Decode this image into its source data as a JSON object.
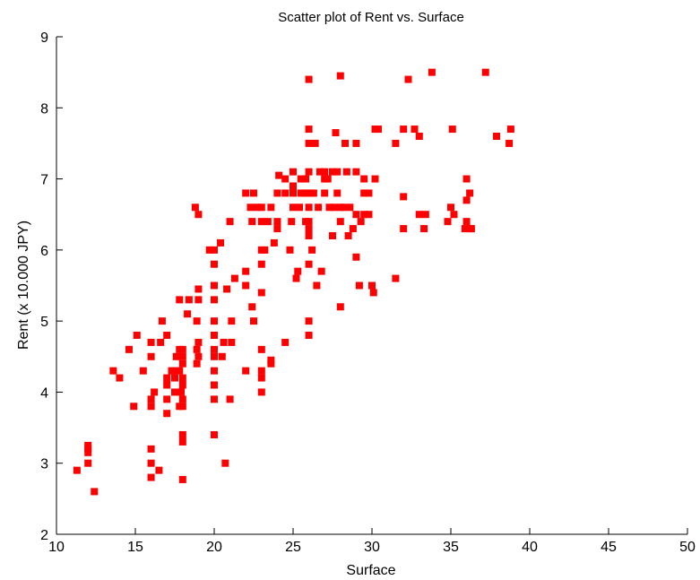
{
  "chart_data": {
    "type": "scatter",
    "title": "Scatter plot of Rent vs. Surface",
    "xlabel": "Surface",
    "ylabel": "Rent (x 10.000 JPY)",
    "xlim": [
      10,
      50
    ],
    "ylim": [
      2,
      9
    ],
    "xticks": [
      "10",
      "15",
      "20",
      "25",
      "30",
      "35",
      "40",
      "45",
      "50"
    ],
    "yticks": [
      "2",
      "3",
      "4",
      "5",
      "6",
      "7",
      "8",
      "9"
    ],
    "grid": false,
    "marker_color": "#ff0000",
    "points": [
      [
        11.3,
        2.9
      ],
      [
        12.0,
        3.0
      ],
      [
        12.0,
        3.15
      ],
      [
        12.0,
        3.2
      ],
      [
        12.0,
        3.25
      ],
      [
        12.4,
        2.6
      ],
      [
        13.6,
        4.3
      ],
      [
        14.0,
        4.2
      ],
      [
        14.6,
        4.6
      ],
      [
        14.9,
        3.8
      ],
      [
        15.1,
        4.8
      ],
      [
        15.5,
        4.3
      ],
      [
        16.0,
        2.8
      ],
      [
        16.0,
        3.0
      ],
      [
        16.0,
        3.2
      ],
      [
        16.0,
        3.8
      ],
      [
        16.0,
        3.9
      ],
      [
        16.0,
        4.5
      ],
      [
        16.0,
        4.7
      ],
      [
        16.2,
        4.0
      ],
      [
        16.5,
        2.9
      ],
      [
        16.6,
        4.7
      ],
      [
        16.7,
        5.0
      ],
      [
        17.0,
        3.7
      ],
      [
        17.0,
        3.9
      ],
      [
        17.0,
        4.1
      ],
      [
        17.0,
        4.2
      ],
      [
        17.0,
        4.8
      ],
      [
        17.3,
        4.3
      ],
      [
        17.5,
        4.0
      ],
      [
        17.5,
        4.2
      ],
      [
        17.5,
        4.3
      ],
      [
        17.6,
        4.5
      ],
      [
        17.8,
        3.8
      ],
      [
        17.8,
        4.3
      ],
      [
        17.8,
        4.6
      ],
      [
        17.8,
        5.3
      ],
      [
        17.9,
        4.0
      ],
      [
        18.0,
        2.77
      ],
      [
        18.0,
        3.3
      ],
      [
        18.0,
        3.4
      ],
      [
        18.0,
        3.8
      ],
      [
        18.0,
        3.9
      ],
      [
        18.0,
        4.1
      ],
      [
        18.0,
        4.2
      ],
      [
        18.0,
        4.4
      ],
      [
        18.0,
        4.5
      ],
      [
        18.0,
        4.6
      ],
      [
        18.3,
        5.1
      ],
      [
        18.4,
        5.3
      ],
      [
        18.8,
        6.6
      ],
      [
        18.9,
        4.4
      ],
      [
        18.9,
        4.6
      ],
      [
        18.9,
        5.0
      ],
      [
        19.0,
        4.5
      ],
      [
        19.0,
        4.7
      ],
      [
        19.0,
        5.3
      ],
      [
        19.0,
        5.45
      ],
      [
        19.0,
        6.5
      ],
      [
        19.7,
        6.0
      ],
      [
        20.0,
        3.4
      ],
      [
        20.0,
        3.9
      ],
      [
        20.0,
        4.1
      ],
      [
        20.0,
        4.3
      ],
      [
        20.0,
        4.5
      ],
      [
        20.0,
        4.6
      ],
      [
        20.0,
        4.8
      ],
      [
        20.0,
        5.0
      ],
      [
        20.0,
        5.3
      ],
      [
        20.0,
        5.5
      ],
      [
        20.0,
        5.8
      ],
      [
        20.0,
        6.0
      ],
      [
        20.4,
        6.1
      ],
      [
        20.5,
        4.5
      ],
      [
        20.6,
        4.7
      ],
      [
        20.7,
        3.0
      ],
      [
        20.8,
        5.45
      ],
      [
        21.0,
        3.9
      ],
      [
        21.0,
        6.4
      ],
      [
        21.1,
        4.7
      ],
      [
        21.1,
        5.0
      ],
      [
        21.3,
        5.6
      ],
      [
        22.0,
        4.3
      ],
      [
        22.0,
        5.5
      ],
      [
        22.0,
        5.7
      ],
      [
        22.0,
        6.8
      ],
      [
        22.3,
        6.6
      ],
      [
        22.4,
        5.2
      ],
      [
        22.4,
        6.4
      ],
      [
        22.5,
        6.8
      ],
      [
        22.5,
        5.0
      ],
      [
        22.7,
        6.6
      ],
      [
        23.0,
        4.0
      ],
      [
        23.0,
        4.2
      ],
      [
        23.0,
        4.3
      ],
      [
        23.0,
        4.6
      ],
      [
        23.0,
        5.4
      ],
      [
        23.0,
        5.8
      ],
      [
        23.0,
        6.0
      ],
      [
        23.0,
        6.4
      ],
      [
        23.0,
        6.6
      ],
      [
        23.2,
        6.0
      ],
      [
        23.4,
        6.4
      ],
      [
        23.6,
        6.6
      ],
      [
        23.6,
        4.4
      ],
      [
        23.6,
        4.45
      ],
      [
        23.8,
        6.1
      ],
      [
        24.0,
        6.3
      ],
      [
        24.0,
        6.4
      ],
      [
        24.0,
        6.8
      ],
      [
        24.1,
        7.05
      ],
      [
        24.5,
        6.8
      ],
      [
        24.5,
        7.0
      ],
      [
        24.5,
        4.7
      ],
      [
        24.8,
        6.0
      ],
      [
        24.9,
        6.4
      ],
      [
        25.0,
        7.1
      ],
      [
        25.0,
        6.6
      ],
      [
        25.0,
        6.8
      ],
      [
        25.0,
        6.9
      ],
      [
        25.2,
        5.6
      ],
      [
        25.3,
        5.7
      ],
      [
        25.4,
        6.6
      ],
      [
        25.5,
        6.8
      ],
      [
        25.5,
        7.0
      ],
      [
        25.8,
        6.4
      ],
      [
        25.8,
        6.8
      ],
      [
        25.8,
        7.0
      ],
      [
        26.0,
        4.8
      ],
      [
        26.0,
        5.0
      ],
      [
        26.0,
        6.3
      ],
      [
        26.0,
        6.4
      ],
      [
        26.0,
        6.6
      ],
      [
        26.0,
        6.8
      ],
      [
        26.0,
        7.1
      ],
      [
        26.0,
        7.5
      ],
      [
        26.0,
        7.7
      ],
      [
        26.0,
        8.4
      ],
      [
        26.0,
        6.2
      ],
      [
        26.0,
        5.8
      ],
      [
        26.2,
        6.0
      ],
      [
        26.3,
        6.8
      ],
      [
        26.4,
        7.5
      ],
      [
        26.5,
        5.5
      ],
      [
        26.6,
        6.6
      ],
      [
        26.7,
        7.1
      ],
      [
        26.8,
        5.7
      ],
      [
        27.0,
        6.8
      ],
      [
        27.0,
        7.0
      ],
      [
        27.0,
        7.1
      ],
      [
        27.2,
        7.0
      ],
      [
        27.3,
        6.6
      ],
      [
        27.5,
        6.2
      ],
      [
        27.5,
        7.1
      ],
      [
        27.6,
        6.6
      ],
      [
        27.7,
        7.65
      ],
      [
        27.8,
        6.8
      ],
      [
        27.8,
        7.1
      ],
      [
        28.0,
        5.2
      ],
      [
        28.0,
        6.6
      ],
      [
        28.0,
        6.4
      ],
      [
        28.0,
        8.45
      ],
      [
        28.2,
        6.6
      ],
      [
        28.3,
        7.5
      ],
      [
        28.4,
        7.1
      ],
      [
        28.5,
        6.2
      ],
      [
        28.6,
        6.6
      ],
      [
        28.8,
        6.3
      ],
      [
        29.0,
        5.9
      ],
      [
        29.0,
        6.5
      ],
      [
        29.0,
        7.1
      ],
      [
        29.0,
        7.5
      ],
      [
        29.2,
        5.5
      ],
      [
        29.3,
        6.4
      ],
      [
        29.5,
        6.5
      ],
      [
        29.5,
        6.8
      ],
      [
        29.5,
        7.0
      ],
      [
        29.8,
        6.5
      ],
      [
        29.8,
        6.8
      ],
      [
        30.0,
        5.5
      ],
      [
        30.1,
        5.4
      ],
      [
        30.2,
        7.0
      ],
      [
        30.2,
        7.7
      ],
      [
        30.4,
        7.7
      ],
      [
        31.5,
        5.6
      ],
      [
        31.5,
        7.5
      ],
      [
        32.0,
        6.3
      ],
      [
        32.0,
        6.75
      ],
      [
        32.0,
        7.7
      ],
      [
        32.3,
        8.4
      ],
      [
        32.7,
        7.7
      ],
      [
        33.0,
        6.5
      ],
      [
        33.0,
        7.6
      ],
      [
        33.3,
        6.3
      ],
      [
        33.4,
        6.5
      ],
      [
        33.8,
        8.5
      ],
      [
        34.8,
        6.4
      ],
      [
        35.0,
        6.6
      ],
      [
        35.1,
        7.7
      ],
      [
        35.2,
        6.5
      ],
      [
        35.9,
        6.3
      ],
      [
        36.0,
        6.4
      ],
      [
        36.0,
        6.7
      ],
      [
        36.0,
        7.0
      ],
      [
        36.2,
        6.3
      ],
      [
        36.2,
        6.8
      ],
      [
        36.3,
        6.3
      ],
      [
        37.2,
        8.5
      ],
      [
        37.9,
        7.6
      ],
      [
        38.7,
        7.5
      ],
      [
        38.8,
        7.7
      ]
    ]
  }
}
